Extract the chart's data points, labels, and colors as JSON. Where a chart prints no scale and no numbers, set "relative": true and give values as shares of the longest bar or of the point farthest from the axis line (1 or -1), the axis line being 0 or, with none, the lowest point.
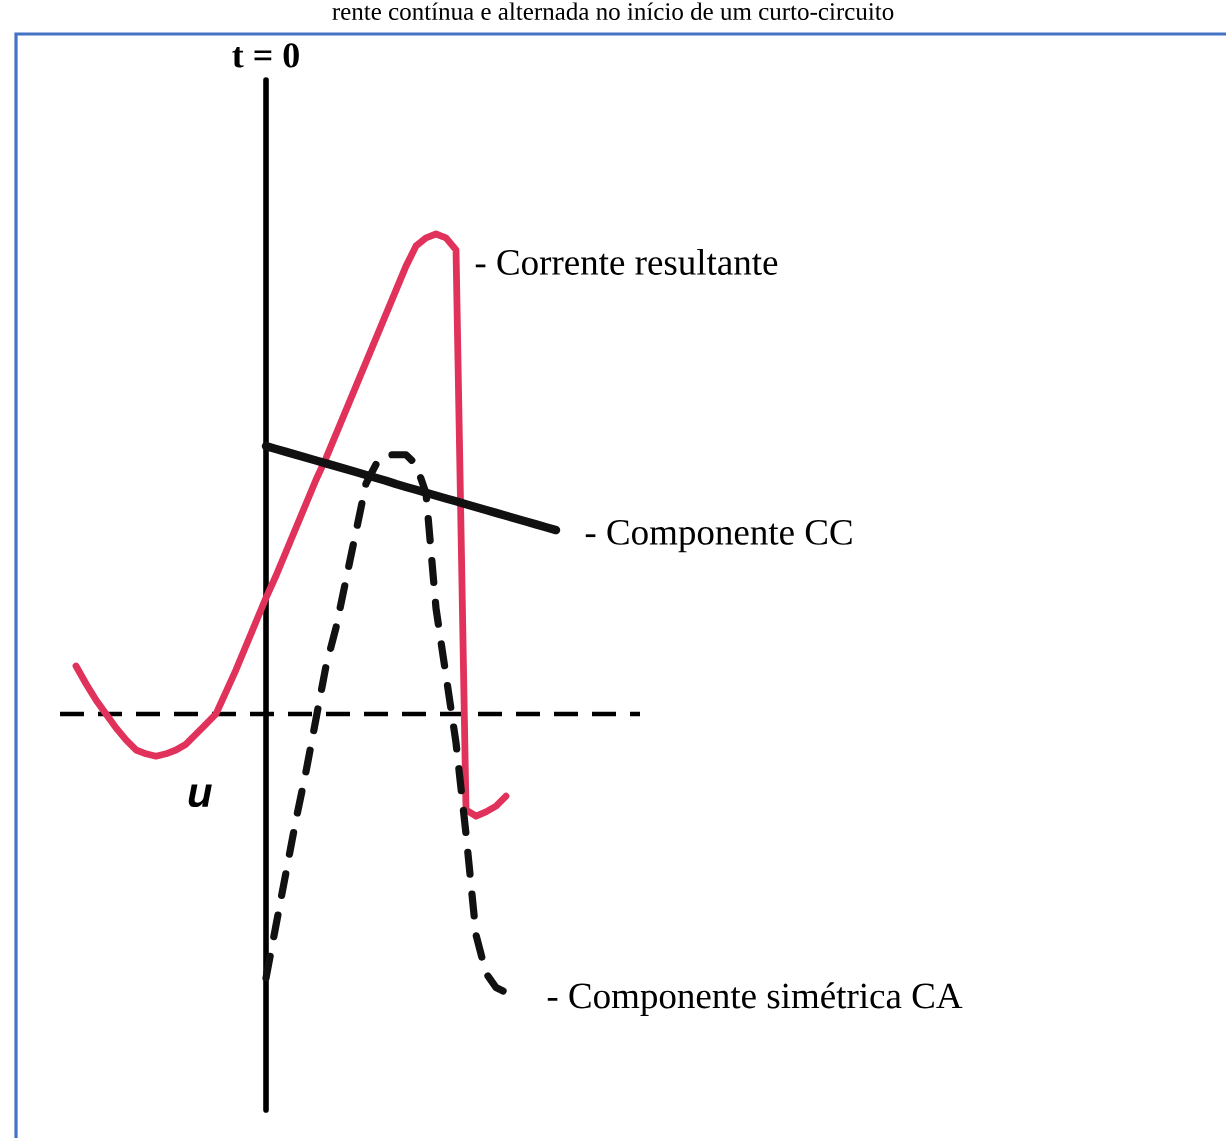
{
  "chart_data": {
    "type": "line",
    "title": "rente contínua e alternada no início de um curto-circuito",
    "relative": true,
    "marker": "none",
    "line_style": "solid",
    "categories": [
      null,
      null,
      null,
      null,
      null,
      null,
      null,
      null,
      null,
      null,
      null,
      null,
      null,
      null,
      null,
      null,
      null,
      null,
      null,
      null,
      null,
      null,
      null,
      null,
      null,
      null,
      null,
      null,
      null,
      null,
      null,
      null,
      null,
      null,
      null,
      null,
      null,
      null,
      null,
      null,
      null,
      null,
      null,
      null,
      null,
      null,
      null,
      null,
      null,
      null
    ],
    "annotations": [
      "t = 0",
      "u"
    ],
    "ref_lines": [
      {
        "axis": "y",
        "value": 0,
        "color": "#000000",
        "line_style": "dashed"
      }
    ],
    "series": [
      {
        "name": "- Corrente resultante",
        "color": "#e0325a",
        "values": [
          null,
          0.1,
          0.063,
          0.029,
          0.0,
          -0.029,
          -0.054,
          -0.075,
          -0.083,
          -0.088,
          -0.083,
          -0.075,
          -0.063,
          -0.042,
          -0.021,
          0.0,
          0.046,
          0.092,
          0.142,
          0.192,
          0.242,
          0.288,
          0.338,
          0.388,
          0.438,
          0.488,
          0.533,
          0.583,
          0.633,
          0.683,
          0.733,
          0.783,
          0.833,
          0.883,
          0.933,
          0.975,
          0.992,
          1.0,
          0.992,
          0.967,
          -0.2,
          -0.213,
          -0.204,
          -0.192,
          -0.171,
          null,
          null,
          null,
          null,
          null
        ]
      },
      {
        "name": "- Componente CC",
        "color": "#111111",
        "values": [
          null,
          null,
          null,
          null,
          null,
          null,
          null,
          null,
          null,
          null,
          null,
          null,
          null,
          null,
          null,
          null,
          null,
          null,
          null,
          null,
          0.558,
          0.552,
          0.546,
          0.54,
          0.534,
          0.528,
          0.522,
          0.516,
          0.51,
          0.504,
          0.498,
          0.492,
          0.486,
          0.479,
          0.473,
          0.467,
          0.461,
          0.455,
          0.449,
          0.443,
          0.437,
          0.431,
          0.425,
          0.419,
          0.413,
          0.407,
          0.401,
          0.395,
          0.389,
          0.383
        ]
      },
      {
        "name": "- Componente simétrica CA",
        "color": "#111111",
        "line_style": "dashed",
        "values": [
          null,
          null,
          null,
          null,
          null,
          null,
          null,
          null,
          null,
          null,
          null,
          null,
          null,
          null,
          null,
          null,
          null,
          null,
          null,
          null,
          -0.55,
          -0.44,
          -0.33,
          -0.22,
          -0.12,
          -0.01,
          0.1,
          0.18,
          0.28,
          0.38,
          0.48,
          0.52,
          0.54,
          0.54,
          0.54,
          0.52,
          0.46,
          0.22,
          0.08,
          -0.06,
          -0.25,
          -0.46,
          -0.54,
          -0.57,
          -0.58,
          -0.59,
          null,
          null,
          null,
          null
        ]
      }
    ]
  }
}
